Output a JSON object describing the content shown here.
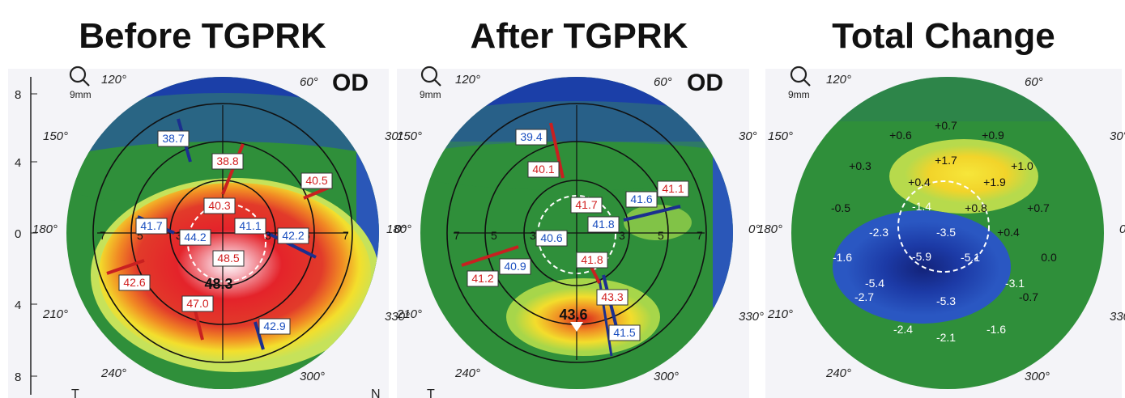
{
  "panels": [
    {
      "title": "Before TGPRK",
      "eye": "OD",
      "zoom": "9mm",
      "angles": [
        "120°",
        "60°",
        "150°",
        "30°",
        "180°",
        "0°",
        "210°",
        "330°",
        "240°",
        "300°"
      ],
      "rings": [
        "7",
        "5",
        "3",
        "3",
        "5",
        "7"
      ],
      "boxes": [
        {
          "v": "38.7",
          "c": "blue"
        },
        {
          "v": "38.8",
          "c": "red"
        },
        {
          "v": "40.5",
          "c": "red"
        },
        {
          "v": "40.3",
          "c": "red"
        },
        {
          "v": "41.7",
          "c": "blue"
        },
        {
          "v": "41.1",
          "c": "blue"
        },
        {
          "v": "42.2",
          "c": "blue"
        },
        {
          "v": "44.2",
          "c": "blue"
        },
        {
          "v": "48.5",
          "c": "red"
        },
        {
          "v": "48.3",
          "c": "black"
        },
        {
          "v": "42.6",
          "c": "red"
        },
        {
          "v": "47.0",
          "c": "red"
        },
        {
          "v": "42.9",
          "c": "blue"
        }
      ],
      "side": {
        "top": "",
        "bottom": "T"
      }
    },
    {
      "title": "After TGPRK",
      "eye": "OD",
      "zoom": "9mm",
      "angles": [
        "120°",
        "60°",
        "150°",
        "30°",
        "180°",
        "0°",
        "210°",
        "330°",
        "240°",
        "300°"
      ],
      "rings": [
        "7",
        "5",
        "3",
        "3",
        "5",
        "7"
      ],
      "boxes": [
        {
          "v": "39.4",
          "c": "blue"
        },
        {
          "v": "40.1",
          "c": "red"
        },
        {
          "v": "41.1",
          "c": "red"
        },
        {
          "v": "41.7",
          "c": "red"
        },
        {
          "v": "41.6",
          "c": "blue"
        },
        {
          "v": "41.8",
          "c": "blue"
        },
        {
          "v": "40.6",
          "c": "blue"
        },
        {
          "v": "40.9",
          "c": "blue"
        },
        {
          "v": "41.8",
          "c": "red"
        },
        {
          "v": "41.2",
          "c": "red"
        },
        {
          "v": "43.3",
          "c": "red"
        },
        {
          "v": "43.6",
          "c": "black"
        },
        {
          "v": "41.5",
          "c": "blue"
        }
      ],
      "side": {
        "bottom": "T"
      }
    },
    {
      "title": "Total Change",
      "zoom": "9mm",
      "angles": [
        "120°",
        "60°",
        "150°",
        "30°",
        "180°",
        "0°",
        "210°",
        "330°",
        "240°",
        "300°"
      ],
      "values": [
        "+0.6",
        "+0.7",
        "+0.9",
        "+0.3",
        "+1.7",
        "+1.0",
        "+0.4",
        "+1.9",
        "-0.5",
        "-1.4",
        "+0.8",
        "+0.7",
        "-2.3",
        "-3.5",
        "+0.4",
        "-1.6",
        "-5.9",
        "-5.1",
        "0.0",
        "-5.4",
        "-3.1",
        "-2.7",
        "-5.3",
        "-0.7",
        "-2.4",
        "-2.1",
        "-1.6"
      ]
    }
  ],
  "axis": {
    "ticks": [
      "8",
      "4",
      "0",
      "4",
      "8"
    ]
  },
  "n_label": "N",
  "colors": {
    "deep_blue": "#1b3fa8",
    "green": "#2f8f3a",
    "yellow": "#f2dc2a",
    "red": "#e22a2a"
  }
}
